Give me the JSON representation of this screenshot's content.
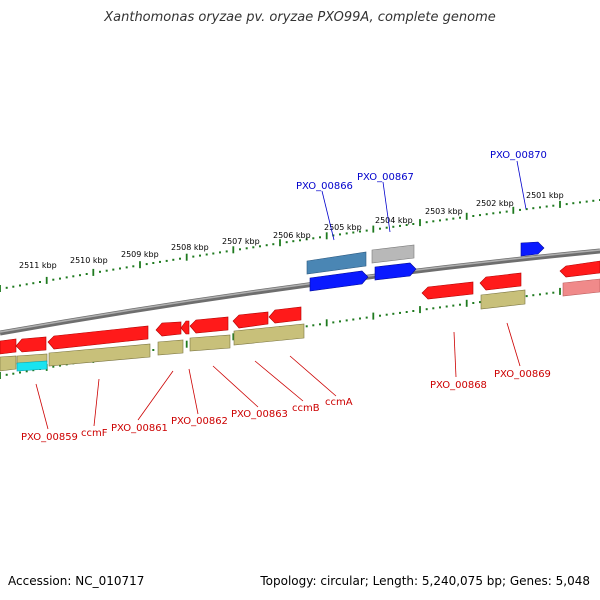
{
  "title": "Xanthomonas oryzae pv. oryzae PXO99A, complete genome",
  "footer": {
    "accession": "Accession: NC_010717",
    "stats": "Topology: circular; Length: 5,240,075 bp; Genes: 5,048"
  },
  "colors": {
    "backbone": "#8a8a8a",
    "ruler": "#1f7a1f",
    "gene": "#ff1a1a",
    "gene_dark": "#b30000",
    "cds": "#c8c07a",
    "cds_dark": "#7a7440",
    "blue_gene": "#0a1aff",
    "steel_gene": "#4a86b4",
    "grey_gene": "#b8b8b8",
    "pink_gene": "#f08a8a",
    "cyan_feature": "#19e3f0",
    "label_forward": "#0000cc",
    "label_reverse": "#cc0000"
  },
  "outer_ruler": {
    "tick_labels": [
      "2506 kbp",
      "2505 kbp",
      "2504 kbp",
      "2503 kbp",
      "2502 kbp",
      "2501 kbp"
    ]
  },
  "inner_ruler": {
    "tick_labels": [
      "2511 kbp",
      "2510 kbp",
      "2509 kbp",
      "2508 kbp",
      "2507 kbp"
    ]
  },
  "forward_labels": [
    "PXO_00866",
    "PXO_00867",
    "PXO_00870"
  ],
  "reverse_labels": [
    "PXO_00859",
    "ccmF",
    "PXO_00861",
    "PXO_00862",
    "PXO_00863",
    "ccmB",
    "ccmA",
    "PXO_00868",
    "PXO_00869"
  ]
}
